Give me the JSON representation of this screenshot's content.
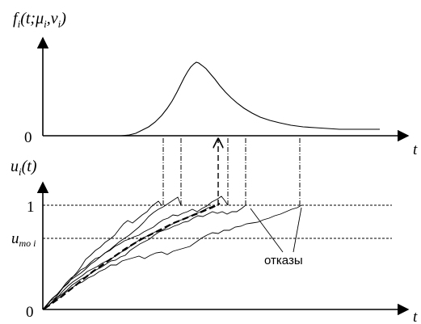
{
  "top_plot": {
    "ylabel": "f",
    "ylabel_sub": "i",
    "ylabel_args": "(t;μ",
    "ylabel_mu_sub": "i",
    "ylabel_sep": ",ν",
    "ylabel_nu_sub": "i",
    "ylabel_close": ")",
    "zero": "0",
    "xlabel": "t"
  },
  "bottom_plot": {
    "ylabel": "u",
    "ylabel_sub": "i",
    "ylabel_args": "(t)",
    "one": "1",
    "threshold_label": "u",
    "threshold_sub": "то i",
    "zero": "0",
    "xlabel": "t",
    "annotation": "отказы"
  },
  "colors": {
    "ink": "#000000",
    "background": "#ffffff"
  }
}
